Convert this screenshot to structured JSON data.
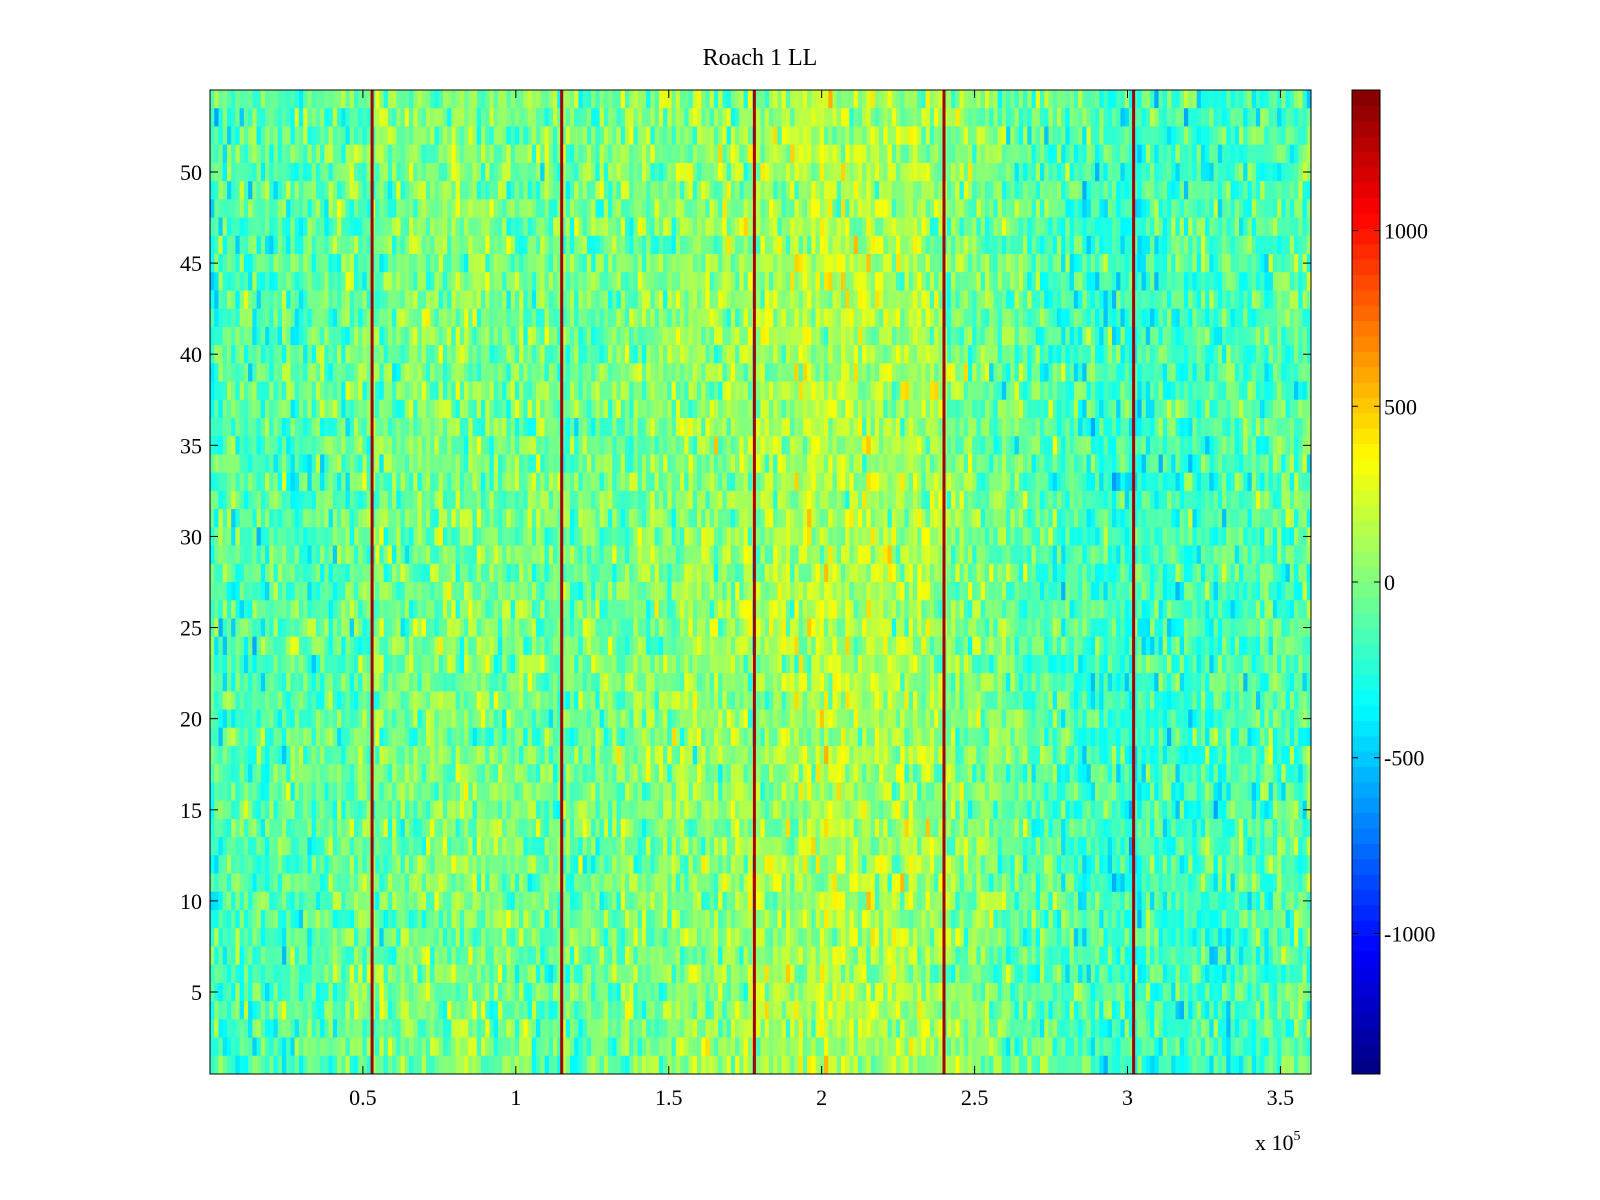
{
  "chart_data": {
    "type": "heatmap",
    "title": "Roach 1 LL",
    "xlabel": "",
    "ylabel": "",
    "x_multiplier_label": "x 10",
    "x_multiplier_exponent": "5",
    "xlim": [
      0,
      3.6
    ],
    "ylim": [
      0.5,
      54.5
    ],
    "x_ticks": [
      {
        "value": 0.5,
        "label": "0.5"
      },
      {
        "value": 1,
        "label": "1"
      },
      {
        "value": 1.5,
        "label": "1.5"
      },
      {
        "value": 2,
        "label": "2"
      },
      {
        "value": 2.5,
        "label": "2.5"
      },
      {
        "value": 3,
        "label": "3"
      },
      {
        "value": 3.5,
        "label": "3.5"
      }
    ],
    "y_ticks": [
      {
        "value": 5,
        "label": "5"
      },
      {
        "value": 10,
        "label": "10"
      },
      {
        "value": 15,
        "label": "15"
      },
      {
        "value": 20,
        "label": "20"
      },
      {
        "value": 25,
        "label": "25"
      },
      {
        "value": 30,
        "label": "30"
      },
      {
        "value": 35,
        "label": "35"
      },
      {
        "value": 40,
        "label": "40"
      },
      {
        "value": 45,
        "label": "45"
      },
      {
        "value": 50,
        "label": "50"
      }
    ],
    "rows": 54,
    "colormap": "jet",
    "clim": [
      -1400,
      1400
    ],
    "colorbar_ticks": [
      {
        "value": 1000,
        "label": "1000"
      },
      {
        "value": 500,
        "label": "500"
      },
      {
        "value": 0,
        "label": "0"
      },
      {
        "value": -500,
        "label": "-500"
      },
      {
        "value": -1000,
        "label": "-1000"
      }
    ],
    "background_profile": [
      {
        "x": 0.0,
        "value": -150
      },
      {
        "x": 0.5,
        "value": -60
      },
      {
        "x": 0.8,
        "value": 20
      },
      {
        "x": 1.1,
        "value": -60
      },
      {
        "x": 1.3,
        "value": -40
      },
      {
        "x": 1.6,
        "value": 40
      },
      {
        "x": 2.0,
        "value": 140
      },
      {
        "x": 2.3,
        "value": 120
      },
      {
        "x": 2.6,
        "value": -60
      },
      {
        "x": 3.0,
        "value": -220
      },
      {
        "x": 3.3,
        "value": -150
      },
      {
        "x": 3.6,
        "value": -100
      }
    ],
    "spike_columns": [
      {
        "x": 0.53,
        "value": 1400
      },
      {
        "x": 1.15,
        "value": 1400
      },
      {
        "x": 1.78,
        "value": 1400
      },
      {
        "x": 2.4,
        "value": 1400
      },
      {
        "x": 3.02,
        "value": 1400
      }
    ]
  }
}
